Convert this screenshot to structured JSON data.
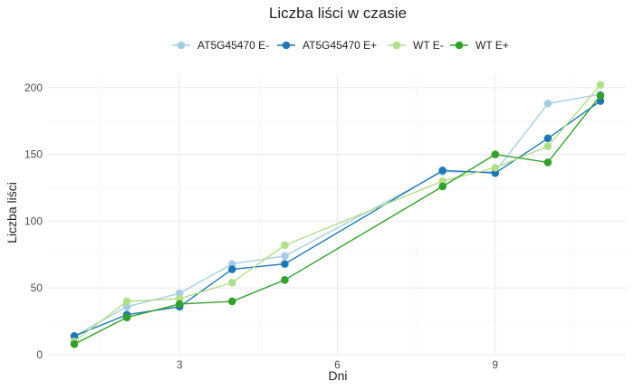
{
  "chart_data": {
    "type": "line",
    "title": "Liczba liści w czasie",
    "xlabel": "Dni",
    "ylabel": "Liczba liści",
    "xlim": [
      0.5,
      11.5
    ],
    "ylim": [
      0,
      210
    ],
    "xticks": [
      3,
      6,
      9
    ],
    "yticks": [
      0,
      50,
      100,
      150,
      200
    ],
    "grid": true,
    "legend_position": "top",
    "series": [
      {
        "name": "AT5G45470 E-",
        "color": "#A6CEE3",
        "points": [
          [
            1,
            14
          ],
          [
            2,
            36
          ],
          [
            3,
            46
          ],
          [
            4,
            68
          ],
          [
            5,
            74
          ],
          [
            8,
            137
          ],
          [
            9,
            137
          ],
          [
            10,
            188
          ],
          [
            11,
            195
          ]
        ]
      },
      {
        "name": "AT5G45470 E+",
        "color": "#1F78B4",
        "points": [
          [
            1,
            14
          ],
          [
            2,
            30
          ],
          [
            3,
            36
          ],
          [
            4,
            64
          ],
          [
            5,
            68
          ],
          [
            8,
            138
          ],
          [
            9,
            136
          ],
          [
            10,
            162
          ],
          [
            11,
            190
          ]
        ]
      },
      {
        "name": "WT E-",
        "color": "#B2DF8A",
        "points": [
          [
            1,
            10
          ],
          [
            2,
            40
          ],
          [
            3,
            42
          ],
          [
            4,
            54
          ],
          [
            5,
            82
          ],
          [
            8,
            130
          ],
          [
            9,
            140
          ],
          [
            10,
            156
          ],
          [
            11,
            202
          ]
        ]
      },
      {
        "name": "WT E+",
        "color": "#33A02C",
        "points": [
          [
            1,
            8
          ],
          [
            2,
            28
          ],
          [
            3,
            38
          ],
          [
            4,
            40
          ],
          [
            5,
            56
          ],
          [
            8,
            126
          ],
          [
            9,
            150
          ],
          [
            10,
            144
          ],
          [
            11,
            194
          ]
        ]
      }
    ]
  }
}
